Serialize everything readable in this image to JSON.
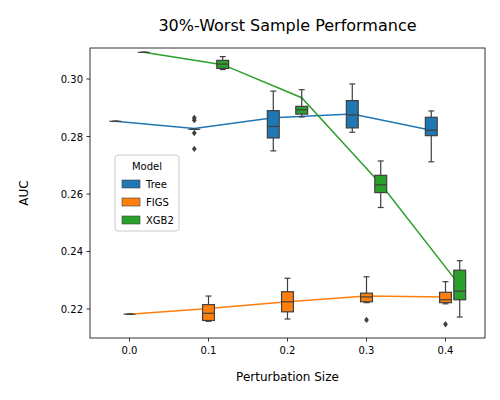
{
  "chart_data": {
    "type": "box",
    "title": "30%-Worst Sample Performance",
    "x_label": "Perturbation Size",
    "y_label": "AUC",
    "categories": [
      "0.0",
      "0.1",
      "0.2",
      "0.3",
      "0.4"
    ],
    "ylim": [
      0.2099,
      0.3108
    ],
    "yticks": [
      0.22,
      0.24,
      0.26,
      0.28,
      {
        "value": 0.3,
        "label": "0.30"
      }
    ],
    "legend": "center left",
    "legend_title": "Model",
    "series": [
      {
        "name": "Tree",
        "color": "#1f77b4",
        "values": [
          0.2853,
          0.2828,
          0.2865,
          0.2878,
          0.2822
        ],
        "boxes": [
          {
            "whislo": 0.2853,
            "q1": 0.2853,
            "med": 0.2853,
            "q3": 0.2853,
            "whishi": 0.2853,
            "fliers": []
          },
          {
            "whislo": 0.2825,
            "q1": 0.2825,
            "med": 0.2825,
            "q3": 0.2825,
            "whishi": 0.2825,
            "fliers": [
              0.2865,
              0.2857,
              0.2812,
              0.2757
            ]
          },
          {
            "whislo": 0.275,
            "q1": 0.2795,
            "med": 0.2835,
            "q3": 0.289,
            "whishi": 0.2958,
            "fliers": []
          },
          {
            "whislo": 0.2815,
            "q1": 0.283,
            "med": 0.2875,
            "q3": 0.2925,
            "whishi": 0.2983,
            "fliers": []
          },
          {
            "whislo": 0.2712,
            "q1": 0.2803,
            "med": 0.2822,
            "q3": 0.2867,
            "whishi": 0.2889,
            "fliers": []
          }
        ]
      },
      {
        "name": "FIGS",
        "color": "#ff7f0e",
        "values": [
          0.2182,
          0.2202,
          0.2225,
          0.2245,
          0.2242
        ],
        "boxes": [
          {
            "whislo": 0.2182,
            "q1": 0.2182,
            "med": 0.2182,
            "q3": 0.2182,
            "whishi": 0.2182,
            "fliers": []
          },
          {
            "whislo": 0.2157,
            "q1": 0.216,
            "med": 0.2185,
            "q3": 0.2215,
            "whishi": 0.2245,
            "fliers": []
          },
          {
            "whislo": 0.2165,
            "q1": 0.219,
            "med": 0.2225,
            "q3": 0.226,
            "whishi": 0.2307,
            "fliers": []
          },
          {
            "whislo": 0.2222,
            "q1": 0.2225,
            "med": 0.2242,
            "q3": 0.2255,
            "whishi": 0.2312,
            "fliers": [
              0.2162
            ]
          },
          {
            "whislo": 0.2218,
            "q1": 0.2222,
            "med": 0.2232,
            "q3": 0.2258,
            "whishi": 0.2295,
            "fliers": [
              0.2147
            ]
          }
        ]
      },
      {
        "name": "XGB2",
        "color": "#2ca02c",
        "values": [
          0.3093,
          0.305,
          0.2935,
          0.2635,
          0.2282
        ],
        "boxes": [
          {
            "whislo": 0.3093,
            "q1": 0.3093,
            "med": 0.3093,
            "q3": 0.3093,
            "whishi": 0.3093,
            "fliers": []
          },
          {
            "whislo": 0.3033,
            "q1": 0.3037,
            "med": 0.3052,
            "q3": 0.3065,
            "whishi": 0.3078,
            "fliers": []
          },
          {
            "whislo": 0.2868,
            "q1": 0.2878,
            "med": 0.2893,
            "q3": 0.2905,
            "whishi": 0.2963,
            "fliers": []
          },
          {
            "whislo": 0.2553,
            "q1": 0.2605,
            "med": 0.2632,
            "q3": 0.2665,
            "whishi": 0.2715,
            "fliers": []
          },
          {
            "whislo": 0.2172,
            "q1": 0.2232,
            "med": 0.2262,
            "q3": 0.2335,
            "whishi": 0.2368,
            "fliers": []
          }
        ]
      }
    ]
  }
}
